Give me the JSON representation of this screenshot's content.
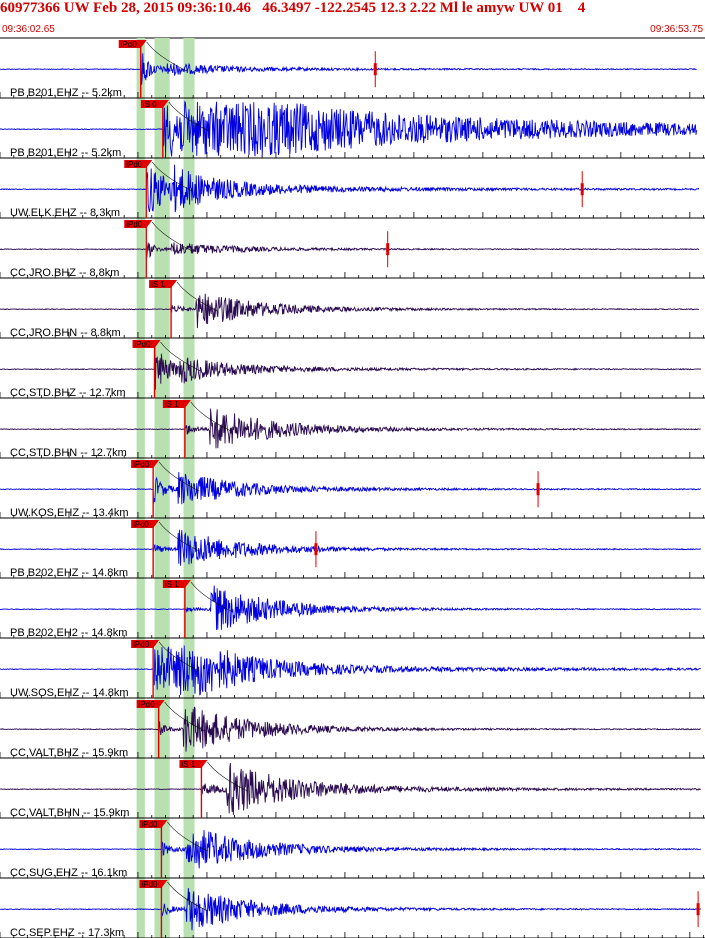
{
  "header": {
    "title": "60977366 UW Feb 28, 2015 09:36:10.46   46.3497 -122.2545 12.3 2.22 Ml le amyw UW 01    4",
    "start_time": "09:36:02.65",
    "end_time": "09:36:53.75"
  },
  "colors": {
    "header_text": "#d40000",
    "trace_blue": "#0000e0",
    "trace_dark": "#2a0a50",
    "pick_red": "#e00000",
    "window_green": "#b8e0b0",
    "theoretical_curve": "#000000"
  },
  "chart_data": {
    "type": "line",
    "title": "60977366 UW Feb 28, 2015 09:36:10.46   46.3497 -122.2545 12.3 2.22 Ml le amyw UW 01    4",
    "x_range": [
      "09:36:02.65",
      "09:36:53.75"
    ],
    "x_range_seconds": [
      0,
      51.1
    ],
    "grid": true,
    "series": [
      {
        "name": "PB B201.EHZ -- 5.2km",
        "color": "blue",
        "pick": "iPd0",
        "pick_t": 10.2,
        "end_t": 50.5,
        "amp_t": 27.2,
        "env": [
          0.7,
          1.6,
          0.2,
          0.04
        ]
      },
      {
        "name": "PB B201.EH2 -- 5.2km",
        "color": "blue",
        "pick": "iS 0",
        "pick_t": 11.8,
        "end_t": 50.5,
        "amp_t": null,
        "env": [
          0.03,
          0.0,
          0.97,
          1.2
        ]
      },
      {
        "name": "UW.ELK.EHZ -- 8.3km",
        "color": "blue",
        "pick": "iPd0",
        "pick_t": 10.6,
        "end_t": 50.7,
        "amp_t": 42.2,
        "env": [
          0.95,
          0.6,
          0.55,
          0.12
        ]
      },
      {
        "name": "CC.JRO.BHZ -- 8.8km",
        "color": "dark",
        "pick": "iPd0",
        "pick_t": 10.6,
        "end_t": 50.7,
        "amp_t": 28.1,
        "env": [
          0.45,
          2.2,
          0.25,
          0.02
        ]
      },
      {
        "name": "CC.JRO.BHN -- 8.8km",
        "color": "dark",
        "pick": "iS 1",
        "pick_t": 12.4,
        "end_t": 50.7,
        "amp_t": null,
        "env": [
          0.12,
          1.2,
          0.65,
          0.03
        ]
      },
      {
        "name": "CC.STD.BHZ -- 12.7km",
        "color": "dark",
        "pick": "iPd0",
        "pick_t": 11.2,
        "end_t": 50.8,
        "amp_t": null,
        "env": [
          0.85,
          1.0,
          0.4,
          0.05
        ]
      },
      {
        "name": "CC.STD.BHN -- 12.7km",
        "color": "dark",
        "pick": "iS 1",
        "pick_t": 13.4,
        "end_t": 50.8,
        "amp_t": null,
        "env": [
          0.2,
          1.5,
          0.8,
          0.04
        ]
      },
      {
        "name": "UW.KOS.EHZ -- 13.4km",
        "color": "blue",
        "pick": "iPd0",
        "pick_t": 11.1,
        "end_t": 50.8,
        "amp_t": 39.0,
        "env": [
          0.55,
          1.6,
          0.6,
          0.05
        ]
      },
      {
        "name": "PB B202.EHZ -- 14.8km",
        "color": "blue",
        "pick": "iPc0",
        "pick_t": 11.1,
        "end_t": 50.8,
        "amp_t": 22.9,
        "env": [
          0.25,
          2.1,
          0.7,
          0.03
        ]
      },
      {
        "name": "PB B202.EH2 -- 14.8km",
        "color": "blue",
        "pick": "iS 1",
        "pick_t": 13.4,
        "end_t": 50.8,
        "amp_t": null,
        "env": [
          0.06,
          1.6,
          0.9,
          0.03
        ]
      },
      {
        "name": "UW.SOS.EHZ -- 14.8km",
        "color": "blue",
        "pick": "iPd0",
        "pick_t": 11.1,
        "end_t": 50.8,
        "amp_t": null,
        "env": [
          1.0,
          0.4,
          0.95,
          0.18
        ]
      },
      {
        "name": "CC.VALT.BHZ -- 15.9km",
        "color": "dark",
        "pick": "iPd0",
        "pick_t": 11.5,
        "end_t": 50.8,
        "amp_t": null,
        "env": [
          0.35,
          2.8,
          0.9,
          0.04
        ]
      },
      {
        "name": "CC.VALT.BHN -- 15.9km",
        "color": "dark",
        "pick": "iS 1",
        "pick_t": 14.6,
        "end_t": 50.8,
        "amp_t": null,
        "env": [
          0.15,
          1.4,
          0.95,
          0.1
        ]
      },
      {
        "name": "CC.SUG.EHZ -- 16.1km",
        "color": "blue",
        "pick": "iPd0",
        "pick_t": 11.7,
        "end_t": 50.8,
        "amp_t": null,
        "env": [
          0.3,
          2.5,
          0.85,
          0.06
        ]
      },
      {
        "name": "CC.SEP.EHZ -- 17.3km",
        "color": "blue",
        "pick": "iPd0",
        "pick_t": 11.7,
        "end_t": 50.8,
        "amp_t": 50.6,
        "env": [
          0.25,
          2.0,
          0.8,
          0.05
        ]
      }
    ],
    "green_windows_t": [
      [
        9.9,
        10.5
      ],
      [
        11.6,
        12.3
      ],
      [
        11.2,
        11.9
      ],
      [
        13.3,
        14.1
      ]
    ]
  }
}
